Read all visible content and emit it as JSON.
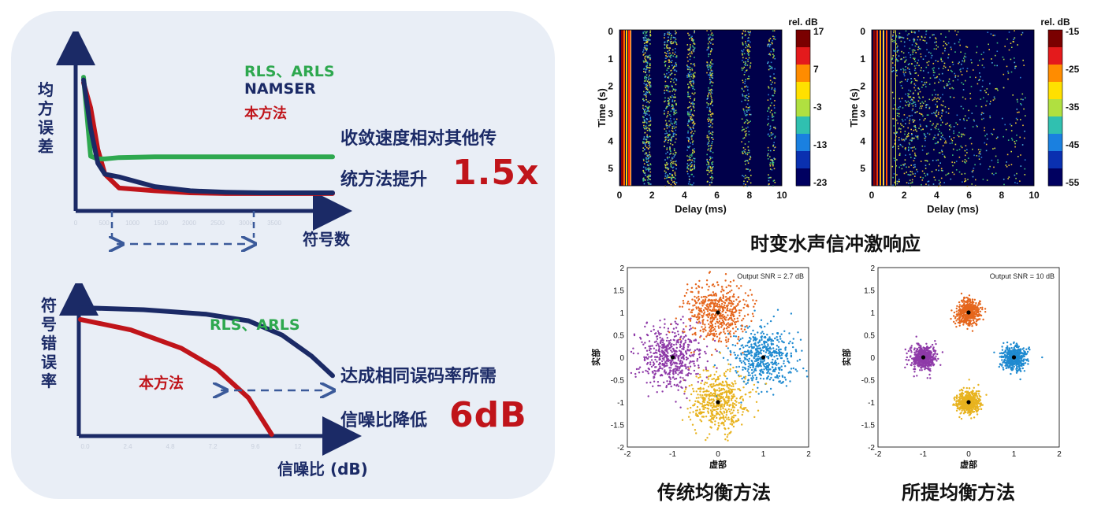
{
  "mse_chart": {
    "ylabel": "均方误差",
    "xlabel": "符号数",
    "legend": [
      "RLS、ARLS",
      "NAMSER",
      "本方法"
    ],
    "annotation_line1": "收敛速度相对其他传",
    "annotation_line2": "统方法提升",
    "speedup": "1.5x",
    "ticks": [
      "0",
      "500",
      "1000",
      "1500",
      "2000",
      "2500",
      "3000",
      "3500"
    ]
  },
  "ser_chart": {
    "ylabel": "符号错误率",
    "xlabel": "信噪比 (dB)",
    "label_rls": "RLS、ARLS",
    "label_proposed": "本方法",
    "annotation_line1": "达成相同误码率所需",
    "annotation_line2": "信噪比降低",
    "gain": "6dB",
    "ticks": [
      "0.0",
      "2.4",
      "4.8",
      "7.2",
      "9.6",
      "12"
    ]
  },
  "impulse": {
    "caption": "时变水声信冲激响应",
    "left": {
      "colorbar_title": "rel. dB",
      "colorbar_ticks": [
        "17",
        "7",
        "-3",
        "-13",
        "-23"
      ],
      "xlabel": "Delay (ms)",
      "ylabel": "Time (s)",
      "xticks": [
        "0",
        "2",
        "4",
        "6",
        "8",
        "10"
      ],
      "yticks": [
        "0",
        "1",
        "2",
        "3",
        "4",
        "5"
      ]
    },
    "right": {
      "colorbar_title": "rel. dB",
      "colorbar_ticks": [
        "-15",
        "-25",
        "-35",
        "-45",
        "-55"
      ],
      "xlabel": "Delay (ms)",
      "ylabel": "Time (s)",
      "xticks": [
        "0",
        "2",
        "4",
        "6",
        "8",
        "10"
      ],
      "yticks": [
        "0",
        "1",
        "2",
        "3",
        "4",
        "5"
      ]
    }
  },
  "constellation": {
    "left": {
      "snr": "Output SNR = 2.7 dB",
      "caption": "传统均衡方法",
      "xlabel": "虚部",
      "ylabel": "实部"
    },
    "right": {
      "snr": "Output SNR = 10 dB",
      "caption": "所提均衡方法",
      "xlabel": "虚部",
      "ylabel": "实部"
    },
    "ticks_x": [
      "-2",
      "-1",
      "0",
      "1",
      "2"
    ],
    "ticks_y": [
      "2",
      "1.5",
      "1",
      "0.5",
      "0",
      "-0.5",
      "-1",
      "-1.5",
      "-2"
    ]
  },
  "chart_data": [
    {
      "type": "line",
      "title": "",
      "xlabel": "符号数",
      "ylabel": "均方误差",
      "x": [
        0,
        100,
        200,
        300,
        500,
        1000,
        1500,
        2000,
        2500,
        3000,
        3500
      ],
      "series": [
        {
          "name": "RLS、ARLS",
          "color": "#2ea84f",
          "values": [
            0.92,
            0.35,
            0.33,
            0.33,
            0.34,
            0.345,
            0.345,
            0.345,
            0.345,
            0.345,
            0.345
          ]
        },
        {
          "name": "NAMSER",
          "color": "#1b2a66",
          "values": [
            0.9,
            0.55,
            0.3,
            0.22,
            0.2,
            0.13,
            0.1,
            0.09,
            0.085,
            0.085,
            0.085
          ]
        },
        {
          "name": "本方法",
          "color": "#c0141a",
          "values": [
            0.88,
            0.7,
            0.4,
            0.22,
            0.12,
            0.1,
            0.085,
            0.08,
            0.08,
            0.08,
            0.08
          ]
        }
      ]
    },
    {
      "type": "line",
      "title": "",
      "xlabel": "信噪比 (dB)",
      "ylabel": "符号错误率",
      "x": [
        0,
        2.4,
        4.8,
        7.2,
        9.6,
        12
      ],
      "series": [
        {
          "name": "RLS、ARLS",
          "color": "#1b2a66",
          "values": [
            0.96,
            0.94,
            0.9,
            0.82,
            0.68,
            0.4
          ]
        },
        {
          "name": "本方法",
          "color": "#c0141a",
          "values": [
            0.88,
            0.8,
            0.62,
            0.4,
            0.0,
            0.0
          ]
        }
      ]
    }
  ]
}
